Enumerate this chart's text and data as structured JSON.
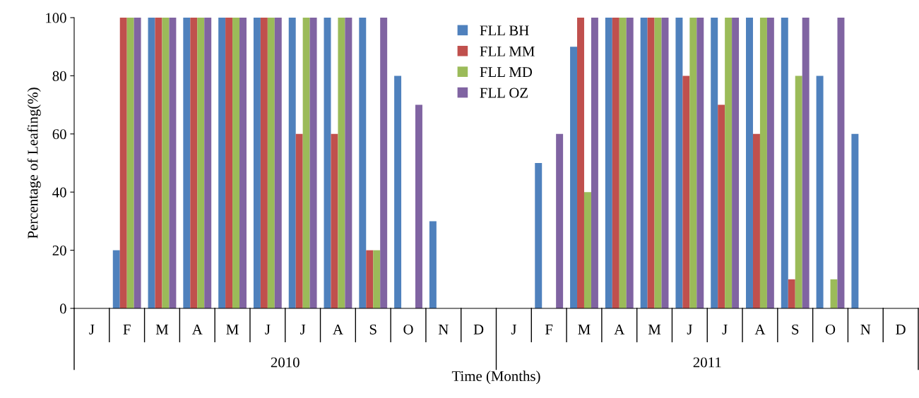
{
  "chart_data": {
    "type": "bar",
    "ylabel": "Percentage of Leafing(%)",
    "xlabel": "Time (Months)",
    "categories": [
      "J",
      "F",
      "M",
      "A",
      "M",
      "J",
      "J",
      "A",
      "S",
      "O",
      "N",
      "D",
      "J",
      "F",
      "M",
      "A",
      "M",
      "J",
      "J",
      "A",
      "S",
      "O",
      "N",
      "D"
    ],
    "series": [
      {
        "name": "FLL BH",
        "color": "#4f81bd",
        "values": [
          0,
          20,
          100,
          100,
          100,
          100,
          100,
          100,
          100,
          80,
          30,
          0,
          0,
          50,
          90,
          100,
          100,
          100,
          100,
          100,
          100,
          80,
          60,
          0
        ]
      },
      {
        "name": "FLL MM",
        "color": "#c0504d",
        "values": [
          0,
          100,
          100,
          100,
          100,
          100,
          60,
          60,
          20,
          0,
          0,
          0,
          0,
          0,
          100,
          100,
          100,
          80,
          70,
          60,
          10,
          0,
          0,
          0
        ]
      },
      {
        "name": "FLL MD",
        "color": "#9bbb59",
        "values": [
          0,
          100,
          100,
          100,
          100,
          100,
          100,
          100,
          20,
          0,
          0,
          0,
          0,
          0,
          40,
          100,
          100,
          100,
          100,
          100,
          80,
          10,
          0,
          0
        ]
      },
      {
        "name": "FLL OZ",
        "color": "#8064a2",
        "values": [
          0,
          100,
          100,
          100,
          100,
          100,
          100,
          100,
          100,
          70,
          0,
          0,
          0,
          60,
          100,
          100,
          100,
          100,
          100,
          100,
          100,
          100,
          0,
          0
        ]
      }
    ],
    "ylim": [
      0,
      100
    ],
    "yticks": [
      0,
      20,
      40,
      60,
      80,
      100
    ],
    "grid": false,
    "legend": "top",
    "annotations": [
      "2010",
      "2011"
    ]
  }
}
